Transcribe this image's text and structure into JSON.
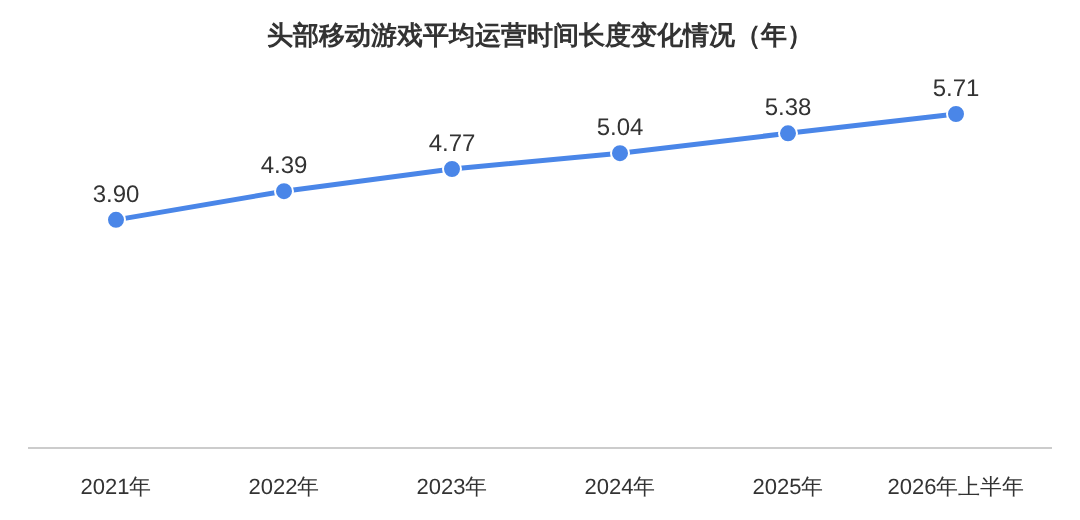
{
  "chart_data": {
    "type": "line",
    "title": "头部移动游戏平均运营时间长度变化情况（年）",
    "categories": [
      "2021年",
      "2022年",
      "2023年",
      "2024年",
      "2025年",
      "2026年上半年"
    ],
    "series": [
      {
        "color": "#4a86e8",
        "values": [
          3.9,
          4.39,
          4.77,
          5.04,
          5.38,
          5.71
        ],
        "value_labels": [
          "3.90",
          "4.39",
          "4.77",
          "5.04",
          "5.38",
          "5.71"
        ]
      }
    ],
    "marker": "circle",
    "line_style": "solid"
  }
}
